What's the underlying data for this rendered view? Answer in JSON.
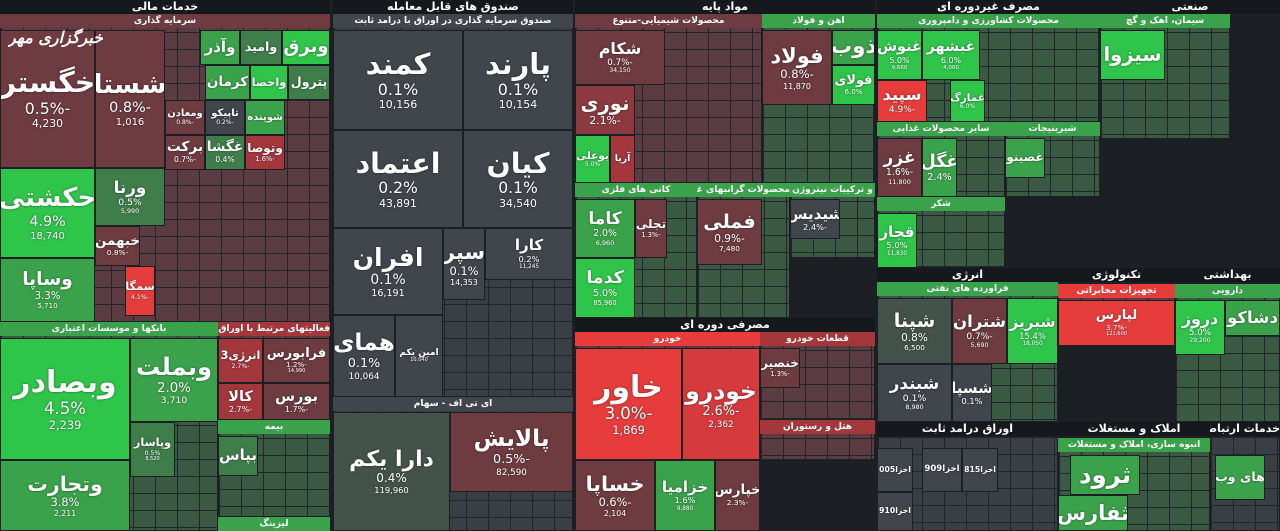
{
  "logo": "خبرگزاری مهر",
  "groups": [
    {
      "title": "خدمات مالی",
      "subgroups": [
        {
          "title": "سرمایه گذاری",
          "color": "#6e3b40",
          "tiles": [
            {
              "name": "خگستر",
              "change": "-0.5%",
              "volume": "4,230",
              "color": "#6e3b40"
            },
            {
              "name": "شستا",
              "change": "-0.8%",
              "volume": "1,016",
              "color": "#6e3b40"
            },
            {
              "name": "حکشتی",
              "change": "4.9%",
              "volume": "18,740",
              "color": "#2fc44a"
            },
            {
              "name": "وساپا",
              "change": "3.3%",
              "volume": "5,710",
              "color": "#3aa24a"
            },
            {
              "name": "ورنا",
              "change": "0.5%",
              "volume": "5,990",
              "color": "#3f7d4a"
            },
            {
              "name": "خبهمن",
              "change": "-0.8%",
              "color": "#6e3b40"
            },
            {
              "name": "وآذر",
              "color": "#3aa24a"
            },
            {
              "name": "وامید",
              "color": "#3f7d4a"
            },
            {
              "name": "وبرق",
              "color": "#2fc44a"
            },
            {
              "name": "ومعادن",
              "change": "-0.8%",
              "color": "#6e3b40"
            },
            {
              "name": "تاپیکو",
              "change": "-0.2%",
              "color": "#41454c"
            },
            {
              "name": "شوینده",
              "color": "#3aa24a"
            },
            {
              "name": "وتوصا",
              "change": "-1.6%",
              "color": "#a3373c"
            },
            {
              "name": "غگشا",
              "change": "0.4%",
              "color": "#3f7d4a"
            },
            {
              "name": "برکت",
              "change": "-0.7%",
              "color": "#6e3b40"
            },
            {
              "name": "کرمان",
              "color": "#3aa24a"
            },
            {
              "name": "واحصا",
              "color": "#2fc44a"
            },
            {
              "name": "پترول",
              "color": "#3f7d4a"
            },
            {
              "name": "سمگا",
              "change": "-4.1%",
              "color": "#e63c3c"
            }
          ]
        },
        {
          "title": "بانکها و موسسات اعتباری",
          "color": "#3aa24a",
          "tiles": [
            {
              "name": "وبصادر",
              "change": "4.5%",
              "volume": "2,239",
              "color": "#2fc44a"
            },
            {
              "name": "وتجارت",
              "change": "3.8%",
              "volume": "2,211",
              "color": "#3aa24a"
            },
            {
              "name": "وبملت",
              "change": "2.0%",
              "volume": "3,710",
              "color": "#3aa24a"
            },
            {
              "name": "وپاسار",
              "change": "0.5%",
              "volume": "8,520",
              "color": "#3f7d4a"
            }
          ]
        },
        {
          "title": "فعالیتهای مرتبط با اوراق بهادار",
          "color": "#a3373c",
          "tiles": [
            {
              "name": "انرژی3",
              "change": "-2.7%",
              "color": "#a3373c"
            },
            {
              "name": "فرابورس",
              "change": "-1.2%",
              "volume": "14,990",
              "color": "#6e3b40"
            },
            {
              "name": "کالا",
              "change": "-2.7%",
              "color": "#a3373c"
            },
            {
              "name": "بورس",
              "change": "-1.7%",
              "color": "#6e3b40"
            }
          ]
        },
        {
          "title": "بیمه",
          "color": "#3aa24a",
          "tiles": [
            {
              "name": "بپاس",
              "color": "#3f7d4a"
            }
          ]
        },
        {
          "title": "لیزینگ",
          "color": "#3aa24a",
          "tiles": []
        }
      ]
    },
    {
      "title": "صندوق های قابل معامله",
      "subgroups": [
        {
          "title": "صندوق سرمایه گذاری در اوراق با درامد ثابت",
          "color": "#41454c",
          "tiles": [
            {
              "name": "کمند",
              "change": "0.1%",
              "volume": "10,156",
              "color": "#41454c"
            },
            {
              "name": "پارند",
              "change": "0.1%",
              "volume": "10,154",
              "color": "#41454c"
            },
            {
              "name": "اعتماد",
              "change": "0.2%",
              "volume": "43,891",
              "color": "#41454c"
            },
            {
              "name": "کیان",
              "change": "0.1%",
              "volume": "34,540",
              "color": "#41454c"
            },
            {
              "name": "افران",
              "change": "0.1%",
              "volume": "16,191",
              "color": "#41454c"
            },
            {
              "name": "سپر",
              "change": "0.1%",
              "volume": "14,353",
              "color": "#41454c"
            },
            {
              "name": "کارا",
              "change": "0.2%",
              "volume": "11,245",
              "color": "#41454c"
            },
            {
              "name": "همای",
              "change": "0.1%",
              "volume": "10,064",
              "color": "#41454c"
            },
            {
              "name": "امین یکم",
              "volume": "10,040",
              "color": "#41454c"
            }
          ]
        },
        {
          "title": "ای تی اف - سهام",
          "color": "#41454c",
          "tiles": [
            {
              "name": "دارا یکم",
              "change": "0.4%",
              "volume": "119,960",
              "color": "#43524a"
            },
            {
              "name": "پالایش",
              "change": "-0.5%",
              "volume": "82,590",
              "color": "#6e3b40"
            }
          ]
        }
      ]
    },
    {
      "title": "مواد پایه",
      "subgroups": [
        {
          "title": "محصولات شیمیایی-متنوع",
          "color": "#6e3b40",
          "tiles": [
            {
              "name": "شکام",
              "change": "-0.7%",
              "volume": "34,150",
              "color": "#6e3b40"
            },
            {
              "name": "نوری",
              "change": "-2.1%",
              "color": "#8b3a3f"
            },
            {
              "name": "بوعلی",
              "change": "5.0%",
              "color": "#2fc44a"
            },
            {
              "name": "آریا",
              "color": "#a3373c"
            }
          ]
        },
        {
          "title": "اهن و فولاد",
          "color": "#3aa24a",
          "tiles": [
            {
              "name": "فولاد",
              "change": "-0.8%",
              "volume": "11,870",
              "color": "#6e3b40"
            },
            {
              "name": "ذوب",
              "color": "#3aa24a"
            },
            {
              "name": "فولای",
              "change": "6.0%",
              "color": "#2fc44a"
            }
          ]
        },
        {
          "title": "کانی های فلزی",
          "color": "#3aa24a",
          "tiles": [
            {
              "name": "کاما",
              "change": "2.0%",
              "volume": "6,960",
              "color": "#3aa24a"
            },
            {
              "name": "کدما",
              "change": "5.0%",
              "volume": "85,960",
              "color": "#2fc44a"
            },
            {
              "name": "تجلی",
              "change": "-1.3%",
              "color": "#6e3b40"
            }
          ]
        },
        {
          "title": "محصولات گرانبهای غیرفلز",
          "color": "#3aa24a",
          "tiles": [
            {
              "name": "فملی",
              "change": "-0.9%",
              "volume": "7,480",
              "color": "#6e3b40"
            }
          ]
        },
        {
          "title": "و ترکیبات نیتروژن",
          "color": "#3aa24a",
          "tiles": [
            {
              "name": "شیدیس",
              "change": "-2.4%",
              "color": "#41454c"
            }
          ]
        }
      ]
    },
    {
      "title": "مصرفی دوره ای",
      "subgroups": [
        {
          "title": "خودرو",
          "color": "#e63c3c",
          "tiles": [
            {
              "name": "خاور",
              "change": "-3.0%",
              "volume": "1,869",
              "color": "#e63c3c"
            },
            {
              "name": "خودرو",
              "change": "-2.6%",
              "volume": "2,362",
              "color": "#d53a3c"
            },
            {
              "name": "خساپا",
              "change": "-0.6%",
              "volume": "2,104",
              "color": "#6e3b40"
            },
            {
              "name": "خزامیا",
              "change": "1.6%",
              "volume": "9,880",
              "color": "#3aa24a"
            },
            {
              "name": "خپارس",
              "change": "-2.3%",
              "color": "#6e3b40"
            }
          ]
        },
        {
          "title": "قطعات خودرو",
          "color": "#a3373c",
          "tiles": [
            {
              "name": "خنصیر",
              "change": "-1.3%",
              "color": "#6e3b40"
            }
          ]
        },
        {
          "title": "هتل و رستوران",
          "color": "#a3373c",
          "tiles": []
        }
      ]
    },
    {
      "title": "مصرف غیردوره ای",
      "subgroups": [
        {
          "title": "محصولات کشاورزی و دامپروری",
          "color": "#3aa24a",
          "tiles": [
            {
              "name": "غنوش",
              "change": "5.0%",
              "volume": "9,660",
              "color": "#2fc44a"
            },
            {
              "name": "غبشهر",
              "change": "6.0%",
              "volume": "4,000",
              "color": "#2fc44a"
            },
            {
              "name": "غمارگ",
              "change": "6.0%",
              "color": "#2fc44a"
            },
            {
              "name": "سپید",
              "change": "-4.9%",
              "color": "#e63c3c"
            }
          ]
        },
        {
          "title": "سایر محصولات غذایی",
          "color": "#3aa24a",
          "tiles": [
            {
              "name": "غزر",
              "change": "-1.6%",
              "volume": "11,800",
              "color": "#6e3b40"
            },
            {
              "name": "غگل",
              "change": "2.4%",
              "color": "#3aa24a"
            }
          ]
        },
        {
          "title": "شیرینیجات",
          "color": "#3aa24a",
          "tiles": [
            {
              "name": "غصینو",
              "color": "#3aa24a"
            }
          ]
        },
        {
          "title": "شکر",
          "color": "#3aa24a",
          "tiles": [
            {
              "name": "قجار",
              "change": "5.0%",
              "volume": "11,830",
              "color": "#2fc44a"
            }
          ]
        }
      ]
    },
    {
      "title": "انرژی",
      "subgroups": [
        {
          "title": "فراورده های نفتی",
          "color": "#3aa24a",
          "tiles": [
            {
              "name": "شپنا",
              "change": "0.8%",
              "volume": "6,500",
              "color": "#43524a"
            },
            {
              "name": "شتران",
              "change": "-0.7%",
              "volume": "5,690",
              "color": "#6e3b40"
            },
            {
              "name": "شبریز",
              "change": "15.4%",
              "volume": "18,050",
              "color": "#2fc44a"
            },
            {
              "name": "شبندر",
              "change": "0.1%",
              "volume": "8,980",
              "color": "#41454c"
            },
            {
              "name": "شسپا",
              "change": "0.1%",
              "color": "#41454c"
            }
          ]
        }
      ]
    },
    {
      "title": "اوراق درامد ثابت",
      "subgroups": [
        {
          "color": "#41454c",
          "tiles": [
            {
              "name": "اخزا005",
              "color": "#41454c"
            },
            {
              "name": "اخزا909",
              "color": "#41454c"
            },
            {
              "name": "اخزا815",
              "color": "#41454c"
            },
            {
              "name": "اخزا910",
              "color": "#41454c"
            }
          ]
        }
      ]
    },
    {
      "title": "صنعتی",
      "subgroups": [
        {
          "title": "سیمان، اهک و گچ",
          "color": "#3aa24a",
          "tiles": [
            {
              "name": "سیزوا",
              "color": "#2fc44a"
            }
          ]
        }
      ]
    },
    {
      "title": "تکنولوژی",
      "subgroups": [
        {
          "title": "تجهیزات مخابراتی",
          "color": "#e63c3c",
          "tiles": [
            {
              "name": "لپارس",
              "change": "-3.7%",
              "volume": "121,600",
              "color": "#e63c3c"
            }
          ]
        }
      ]
    },
    {
      "title": "بهداشتی",
      "subgroups": [
        {
          "title": "دارویی",
          "color": "#3aa24a",
          "tiles": [
            {
              "name": "دروز",
              "change": "5.0%",
              "volume": "29,200",
              "color": "#2fc44a"
            },
            {
              "name": "دشاکو",
              "color": "#3aa24a"
            }
          ]
        }
      ]
    },
    {
      "title": "املاک و مستغلات",
      "subgroups": [
        {
          "title": "انبوه سازی، املاک و مستغلات",
          "color": "#3aa24a",
          "tiles": [
            {
              "name": "ثرود",
              "color": "#3aa24a"
            },
            {
              "name": "ثفارس",
              "color": "#3aa24a"
            }
          ]
        }
      ]
    },
    {
      "title": "خدمات ارتباطی",
      "subgroups": [
        {
          "color": "#41454c",
          "tiles": [
            {
              "name": "های وب",
              "color": "#3aa24a"
            }
          ]
        }
      ]
    }
  ]
}
